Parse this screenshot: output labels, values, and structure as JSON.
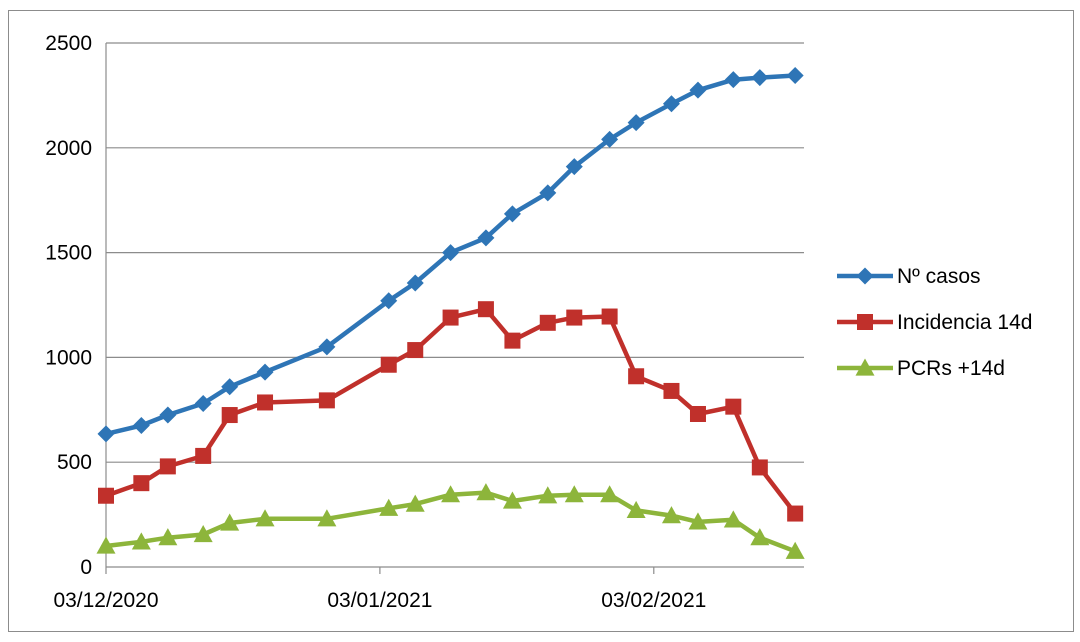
{
  "chart_data": {
    "type": "line",
    "x_type": "date",
    "x_ticks": [
      "03/12/2020",
      "03/01/2021",
      "03/02/2021"
    ],
    "xlim": [
      "2020-12-03",
      "2021-02-20"
    ],
    "ylim": [
      0,
      2500
    ],
    "y_ticks": [
      0,
      500,
      1000,
      1500,
      2000,
      2500
    ],
    "grid": "horizontal",
    "legend": "right",
    "x": [
      "2020-12-03",
      "2020-12-07",
      "2020-12-10",
      "2020-12-14",
      "2020-12-17",
      "2020-12-21",
      "2020-12-28",
      "2021-01-04",
      "2021-01-07",
      "2021-01-11",
      "2021-01-15",
      "2021-01-18",
      "2021-01-22",
      "2021-01-25",
      "2021-01-29",
      "2021-02-01",
      "2021-02-05",
      "2021-02-08",
      "2021-02-12",
      "2021-02-15",
      "2021-02-19"
    ],
    "series": [
      {
        "name": "Nº casos",
        "color": "#2E75B6",
        "marker": "diamond",
        "values": [
          635,
          675,
          725,
          780,
          860,
          930,
          1050,
          1270,
          1355,
          1500,
          1570,
          1685,
          1785,
          1910,
          2040,
          2120,
          2210,
          2275,
          2325,
          2335,
          2345
        ]
      },
      {
        "name": "Incidencia 14d",
        "color": "#C0302B",
        "marker": "square",
        "values": [
          340,
          400,
          480,
          530,
          725,
          785,
          795,
          965,
          1035,
          1190,
          1230,
          1080,
          1165,
          1190,
          1195,
          910,
          840,
          730,
          765,
          475,
          255
        ]
      },
      {
        "name": "PCRs +14d",
        "color": "#8DB53B",
        "marker": "triangle",
        "values": [
          100,
          120,
          140,
          155,
          210,
          230,
          230,
          280,
          300,
          345,
          355,
          315,
          340,
          345,
          345,
          270,
          245,
          215,
          225,
          140,
          75
        ]
      }
    ]
  }
}
